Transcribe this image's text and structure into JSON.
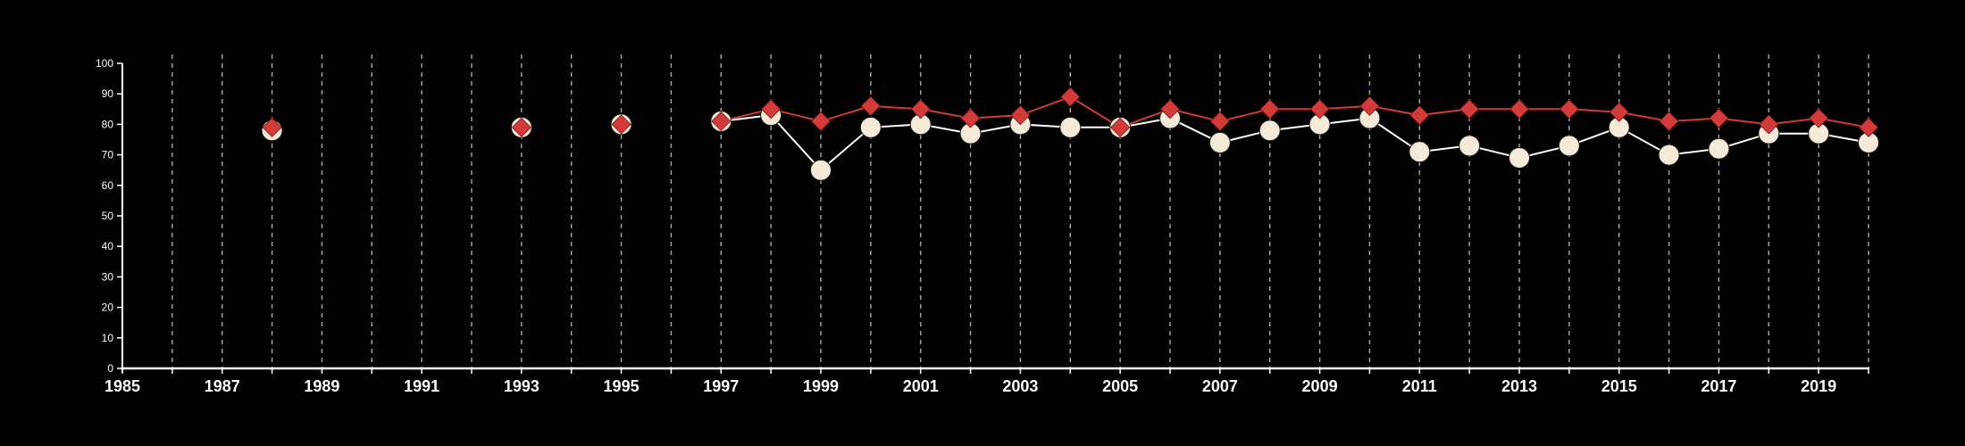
{
  "chart_data": {
    "type": "line",
    "title": "",
    "xlabel": "",
    "ylabel": "",
    "xlim": [
      1985,
      2020
    ],
    "ylim": [
      0,
      100
    ],
    "x_ticks": [
      1985,
      1987,
      1989,
      1991,
      1993,
      1995,
      1997,
      1999,
      2001,
      2003,
      2005,
      2007,
      2009,
      2011,
      2013,
      2015,
      2017,
      2019
    ],
    "y_ticks": [
      0,
      10,
      20,
      30,
      40,
      50,
      60,
      70,
      80,
      90,
      100
    ],
    "grid": "vertical dashed at every year",
    "x": [
      1988,
      1993,
      1995,
      1997,
      1998,
      1999,
      2000,
      2001,
      2002,
      2003,
      2004,
      2005,
      2006,
      2007,
      2008,
      2009,
      2010,
      2011,
      2012,
      2013,
      2014,
      2015,
      2016,
      2017,
      2018,
      2019,
      2020
    ],
    "series": [
      {
        "marker": "circle",
        "color": "#f5ead8",
        "values": [
          78,
          79,
          80,
          81,
          83,
          65,
          79,
          80,
          77,
          80,
          79,
          79,
          82,
          74,
          78,
          80,
          82,
          71,
          73,
          69,
          73,
          79,
          70,
          72,
          77,
          77,
          74
        ],
        "connected_from_index": 3
      },
      {
        "marker": "diamond",
        "color": "#d33a3a",
        "values": [
          79,
          79,
          80,
          81,
          85,
          81,
          86,
          85,
          82,
          83,
          89,
          79,
          85,
          81,
          85,
          85,
          86,
          83,
          85,
          85,
          85,
          84,
          81,
          82,
          80,
          82,
          79
        ],
        "connected_from_index": 3
      }
    ]
  }
}
